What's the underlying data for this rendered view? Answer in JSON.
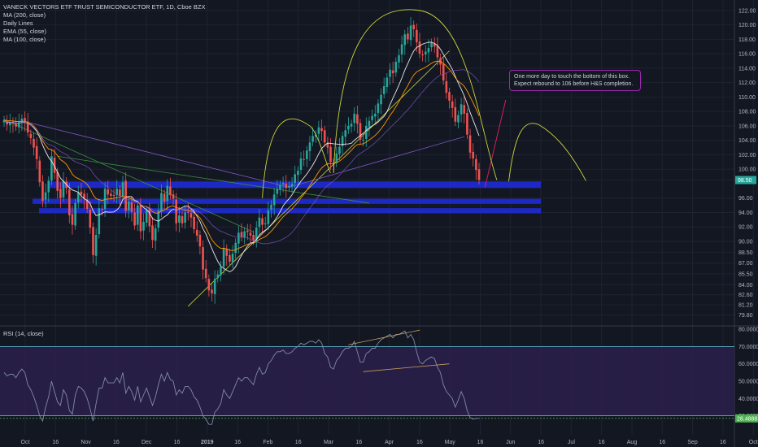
{
  "legend": {
    "title": "VANECK VECTORS ETF TRUST SEMICONDUCTOR ETF, 1D, Cboe BZX",
    "lines": [
      "MA (200, close)",
      "Daily Lines",
      "EMA (55, close)",
      "MA (100, close)"
    ]
  },
  "rsi_legend": "RSI (14, close)",
  "note": "One more day to touch the bottom of this box.\nExpect rebound to 106 before H&S completion.",
  "colors": {
    "up": "#26a69a",
    "down": "#ef5350",
    "ma200": "#ffffff",
    "ema55": "#ff9800",
    "ma100": "#7e57c2",
    "zones": "#1f2bd6",
    "trend": "#c9d63a",
    "purple_band": "#2a1f4a"
  },
  "chart_data": [
    {
      "type": "candlestick",
      "title": "VANECK VECTORS ETF TRUST SEMICONDUCTOR ETF, 1D, Cboe BZX",
      "ylim": [
        78.4,
        123.0
      ],
      "y_ticks": [
        "122.00",
        "120.00",
        "118.00",
        "116.00",
        "114.00",
        "112.00",
        "110.00",
        "108.00",
        "106.00",
        "104.00",
        "102.00",
        "100.00",
        "98.50",
        "96.00",
        "94.00",
        "92.00",
        "90.00",
        "88.50",
        "87.00",
        "85.50",
        "84.00",
        "82.60",
        "81.20",
        "79.80"
      ],
      "last_price": "98.50",
      "x_ticks": [
        "Oct",
        "16",
        "Nov",
        "16",
        "Dec",
        "16",
        "2019",
        "16",
        "Feb",
        "16",
        "Mar",
        "16",
        "Apr",
        "16",
        "May",
        "16",
        "Jun",
        "16",
        "Jul",
        "16",
        "Aug",
        "16",
        "Sep",
        "16",
        "Oct"
      ],
      "close": [
        106.8,
        106.2,
        106.5,
        106.4,
        105.9,
        106.5,
        107.0,
        106.6,
        105.1,
        104.3,
        103.0,
        101.4,
        98.2,
        95.6,
        96.8,
        98.4,
        101.8,
        99.5,
        97.0,
        96.0,
        98.4,
        97.4,
        93.6,
        92.3,
        95.3,
        96.8,
        96.5,
        95.9,
        94.5,
        91.9,
        88.1,
        90.9,
        94.6,
        94.4,
        97.3,
        96.5,
        96.3,
        96.3,
        97.3,
        96.3,
        98.2,
        94.2,
        95.5,
        94.1,
        92.2,
        95.0,
        91.4,
        92.7,
        94.3,
        92.1,
        90.2,
        91.8,
        94.3,
        96.7,
        95.5,
        97.7,
        96.4,
        95.9,
        92.5,
        93.6,
        92.5,
        94.0,
        94.0,
        93.3,
        91.7,
        90.8,
        89.3,
        86.1,
        84.9,
        83.2,
        82.8,
        84.8,
        85.4,
        86.4,
        89.1,
        88.0,
        87.2,
        88.3,
        89.8,
        91.2,
        90.6,
        91.4,
        91.3,
        90.8,
        90.1,
        91.9,
        93.3,
        92.3,
        92.5,
        94.3,
        95.1,
        96.5,
        97.3,
        97.8,
        98.1,
        97.4,
        97.7,
        98.0,
        99.3,
        99.8,
        101.5,
        101.3,
        102.6,
        103.7,
        104.6,
        104.8,
        105.8,
        105.3,
        103.7,
        103.0,
        101.0,
        100.8,
        102.2,
        103.1,
        104.6,
        105.4,
        106.0,
        106.3,
        107.7,
        106.3,
        104.1,
        104.1,
        106.0,
        106.7,
        107.4,
        107.7,
        109.1,
        110.3,
        111.5,
        112.7,
        113.8,
        113.3,
        114.9,
        115.8,
        117.3,
        118.7,
        118.0,
        119.9,
        119.4,
        117.6,
        116.0,
        115.8,
        116.3,
        116.8,
        117.5,
        117.0,
        115.5,
        114.5,
        112.3,
        110.6,
        109.5,
        108.5,
        106.6,
        107.5,
        109.0,
        107.7,
        104.8,
        102.3,
        101.5,
        99.9,
        98.5
      ],
      "open": [
        106.5,
        106.6,
        106.1,
        106.6,
        106.3,
        105.8,
        106.4,
        107.1,
        106.6,
        104.9,
        104.2,
        103.2,
        101.2,
        98.3,
        95.8,
        96.8,
        98.4,
        101.6,
        99.6,
        97.3,
        96.1,
        98.3,
        97.2,
        93.8,
        92.2,
        95.4,
        96.9,
        96.6,
        95.8,
        94.4,
        92.0,
        88.0,
        91.0,
        94.5,
        94.5,
        97.2,
        96.6,
        96.4,
        96.4,
        97.2,
        96.3,
        98.4,
        94.3,
        95.4,
        94.0,
        92.3,
        95.1,
        91.5,
        92.6,
        94.4,
        92.2,
        90.1,
        91.9,
        94.2,
        96.6,
        95.6,
        97.6,
        96.5,
        95.8,
        92.6,
        93.5,
        92.6,
        94.1,
        93.9,
        93.4,
        91.6,
        90.9,
        89.2,
        86.2,
        84.8,
        83.3,
        82.7,
        84.9,
        85.3,
        86.5,
        89.0,
        88.1,
        87.1,
        88.4,
        89.7,
        91.3,
        90.5,
        91.5,
        91.2,
        90.9,
        90.0,
        92.0,
        93.2,
        92.4,
        92.4,
        94.4,
        95.0,
        96.6,
        97.2,
        97.9,
        98.0,
        97.5,
        97.6,
        98.1,
        99.2,
        99.9,
        101.4,
        101.4,
        102.5,
        103.8,
        104.5,
        104.9,
        105.7,
        105.4,
        103.6,
        103.1,
        100.9,
        100.9,
        102.1,
        103.2,
        104.5,
        105.5,
        105.9,
        106.4,
        107.6,
        106.4,
        104.0,
        104.2,
        105.9,
        106.8,
        107.3,
        107.8,
        109.0,
        110.4,
        111.4,
        112.8,
        113.7,
        113.4,
        114.8,
        115.9,
        117.2,
        118.8,
        117.9,
        120.0,
        119.3,
        117.7,
        115.9,
        115.9,
        116.2,
        116.9,
        117.4,
        117.1,
        115.4,
        114.6,
        112.2,
        110.7,
        109.4,
        108.6,
        106.5,
        107.6,
        108.9,
        107.8,
        104.7,
        102.4,
        101.4,
        100.0
      ]
    },
    {
      "type": "line",
      "title": "RSI (14, close)",
      "ylim": [
        19.0,
        81.0
      ],
      "y_ticks": [
        "80.0000",
        "70.0000",
        "60.0000",
        "50.0000",
        "40.0000",
        "30.0000"
      ],
      "last_value": "28.4888",
      "values": [
        55,
        53,
        54,
        54,
        52,
        55,
        57,
        55,
        48,
        45,
        41,
        36,
        30,
        27,
        35,
        41,
        50,
        44,
        38,
        36,
        45,
        42,
        33,
        31,
        42,
        47,
        46,
        44,
        40,
        34,
        27,
        37,
        46,
        46,
        52,
        49,
        49,
        49,
        52,
        49,
        55,
        43,
        47,
        44,
        39,
        47,
        38,
        42,
        46,
        41,
        36,
        41,
        48,
        54,
        50,
        55,
        51,
        50,
        42,
        45,
        43,
        47,
        47,
        45,
        41,
        39,
        35,
        30,
        28,
        25,
        25,
        32,
        34,
        37,
        45,
        42,
        40,
        44,
        48,
        52,
        50,
        52,
        52,
        50,
        48,
        54,
        58,
        54,
        55,
        60,
        62,
        65,
        67,
        67,
        68,
        66,
        66,
        67,
        69,
        70,
        72,
        71,
        72,
        73,
        73,
        72,
        74,
        72,
        66,
        64,
        58,
        57,
        62,
        64,
        67,
        69,
        69,
        70,
        73,
        67,
        61,
        61,
        66,
        67,
        69,
        69,
        72,
        74,
        75,
        76,
        77,
        75,
        77,
        77,
        78,
        79,
        75,
        77,
        74,
        67,
        61,
        60,
        62,
        63,
        64,
        63,
        58,
        55,
        48,
        44,
        42,
        40,
        35,
        39,
        44,
        40,
        33,
        29,
        28,
        28.5,
        28.5
      ]
    }
  ]
}
